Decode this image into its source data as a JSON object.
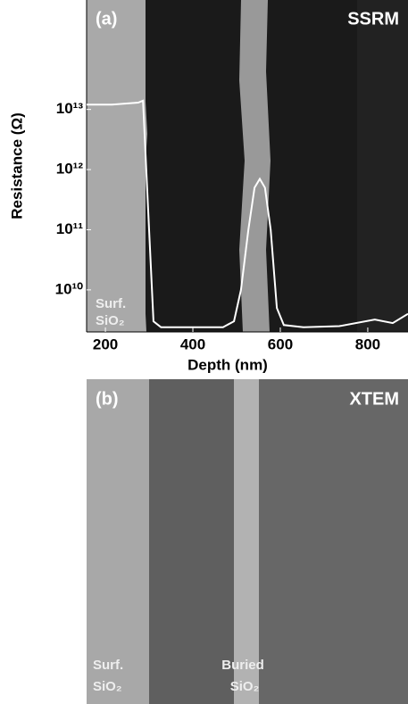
{
  "chart_data": {
    "type": "line",
    "panel_label": "(a)",
    "image_label": "SSRM",
    "x_label": "Depth (nm)",
    "y_label": "Resistance (Ω)",
    "annotations": [
      "Surf.",
      "SiO₂"
    ],
    "log_y": true,
    "color": "#ffffff",
    "x": [
      157,
      214,
      275,
      286,
      300,
      310,
      327,
      469,
      494,
      510,
      527,
      541,
      553,
      565,
      578,
      592,
      608,
      653,
      735,
      816,
      857,
      892
    ],
    "values": [
      12000000000000,
      12000000000000,
      13000000000000,
      14000000000000,
      100000000000,
      3000000000,
      2400000000,
      2400000000,
      3000000000,
      10000000000,
      100000000000,
      500000000000,
      700000000000,
      500000000000,
      100000000000,
      5000000000,
      2600000000,
      2400000000,
      2500000000,
      3200000000,
      2800000000,
      4000000000
    ],
    "xlim": [
      157,
      892
    ],
    "xticks": [
      200,
      400,
      600,
      800
    ],
    "ylim": [
      2000000000,
      660000000000000
    ],
    "yticks": [
      {
        "value": 10000000000000,
        "label": "10¹³"
      },
      {
        "value": 1000000000000,
        "label": "10¹²"
      },
      {
        "value": 100000000000,
        "label": "10¹¹"
      },
      {
        "value": 10000000000,
        "label": "10¹⁰"
      }
    ]
  },
  "panel_b": {
    "panel_label": "(b)",
    "image_label": "XTEM",
    "annotations": [
      "Surf.",
      "SiO₂",
      "Buried",
      "SiO₂"
    ]
  }
}
